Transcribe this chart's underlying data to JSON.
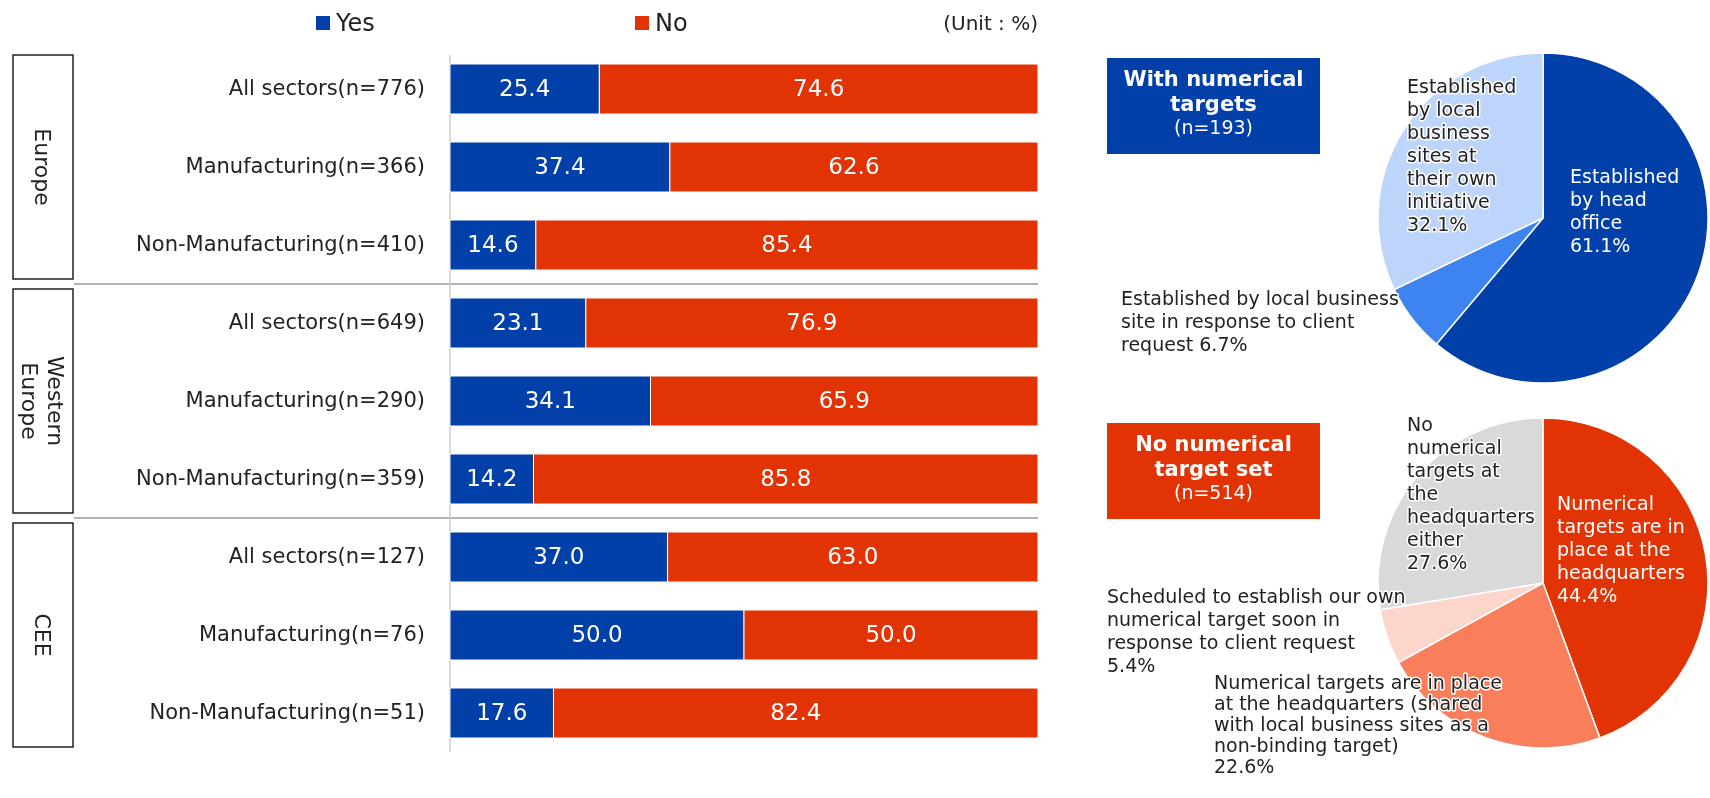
{
  "chart_data": [
    {
      "type": "bar",
      "orientation": "horizontal",
      "stacked": true,
      "xlim": [
        0,
        100
      ],
      "tick_labels": "y",
      "legend": "top",
      "categories": [
        "All sectors(n=776)",
        "Manufacturing(n=366)",
        "Non-Manufacturing(n=410)",
        "All sectors(n=649)",
        "Manufacturing(n=290)",
        "Non-Manufacturing(n=359)",
        "All sectors(n=127)",
        "Manufacturing(n=76)",
        "Non-Manufacturing(n=51)"
      ],
      "series": [
        {
          "name": "Yes",
          "color": "#0040a8",
          "values": [
            25.4,
            37.4,
            14.6,
            23.1,
            34.1,
            14.2,
            37.0,
            50.0,
            17.6
          ],
          "value_labels": [
            "25.4",
            "37.4",
            "14.6",
            "23.1",
            "34.1",
            "14.2",
            "37.0",
            "50.0",
            "17.6"
          ]
        },
        {
          "name": "No",
          "color": "#e23305",
          "values": [
            74.6,
            62.6,
            85.4,
            76.9,
            65.9,
            85.8,
            63.0,
            50.0,
            82.4
          ],
          "value_labels": [
            "74.6",
            "62.6",
            "85.4",
            "76.9",
            "65.9",
            "85.8",
            "63.0",
            "50.0",
            "82.4"
          ]
        }
      ],
      "annotations": [
        "(Unit : %)",
        "Europe",
        "Western Europe",
        "CEE"
      ]
    },
    {
      "type": "pie",
      "title": "With numerical targets",
      "subtitle": "(n=193)",
      "categories": [
        "Established by head office",
        "Established by local business site in response to client request",
        "Established by local business sites at their own initiative"
      ],
      "values": [
        61.1,
        6.7,
        32.1
      ],
      "colors": [
        "#0040a8",
        "#3d84f0",
        "#bdd5fb"
      ],
      "value_labels": [
        "61.1%",
        "6.7%",
        "32.1%"
      ]
    },
    {
      "type": "pie",
      "title": "No numerical target set",
      "subtitle": "(n=514)",
      "categories": [
        "Numerical targets are in place at the headquarters",
        "Numerical targets are in place at the headquarters (shared with local business sites as a non-binding target)",
        "Scheduled to establish our own numerical target soon in response to client request",
        "No numerical targets at the headquarters either"
      ],
      "values": [
        44.4,
        22.6,
        5.4,
        27.6
      ],
      "colors": [
        "#e23305",
        "#f97f5c",
        "#fcd6ca",
        "#d9d9d9"
      ],
      "value_labels": [
        "44.4%",
        "22.6%",
        "5.4%",
        "27.6%"
      ]
    }
  ]
}
